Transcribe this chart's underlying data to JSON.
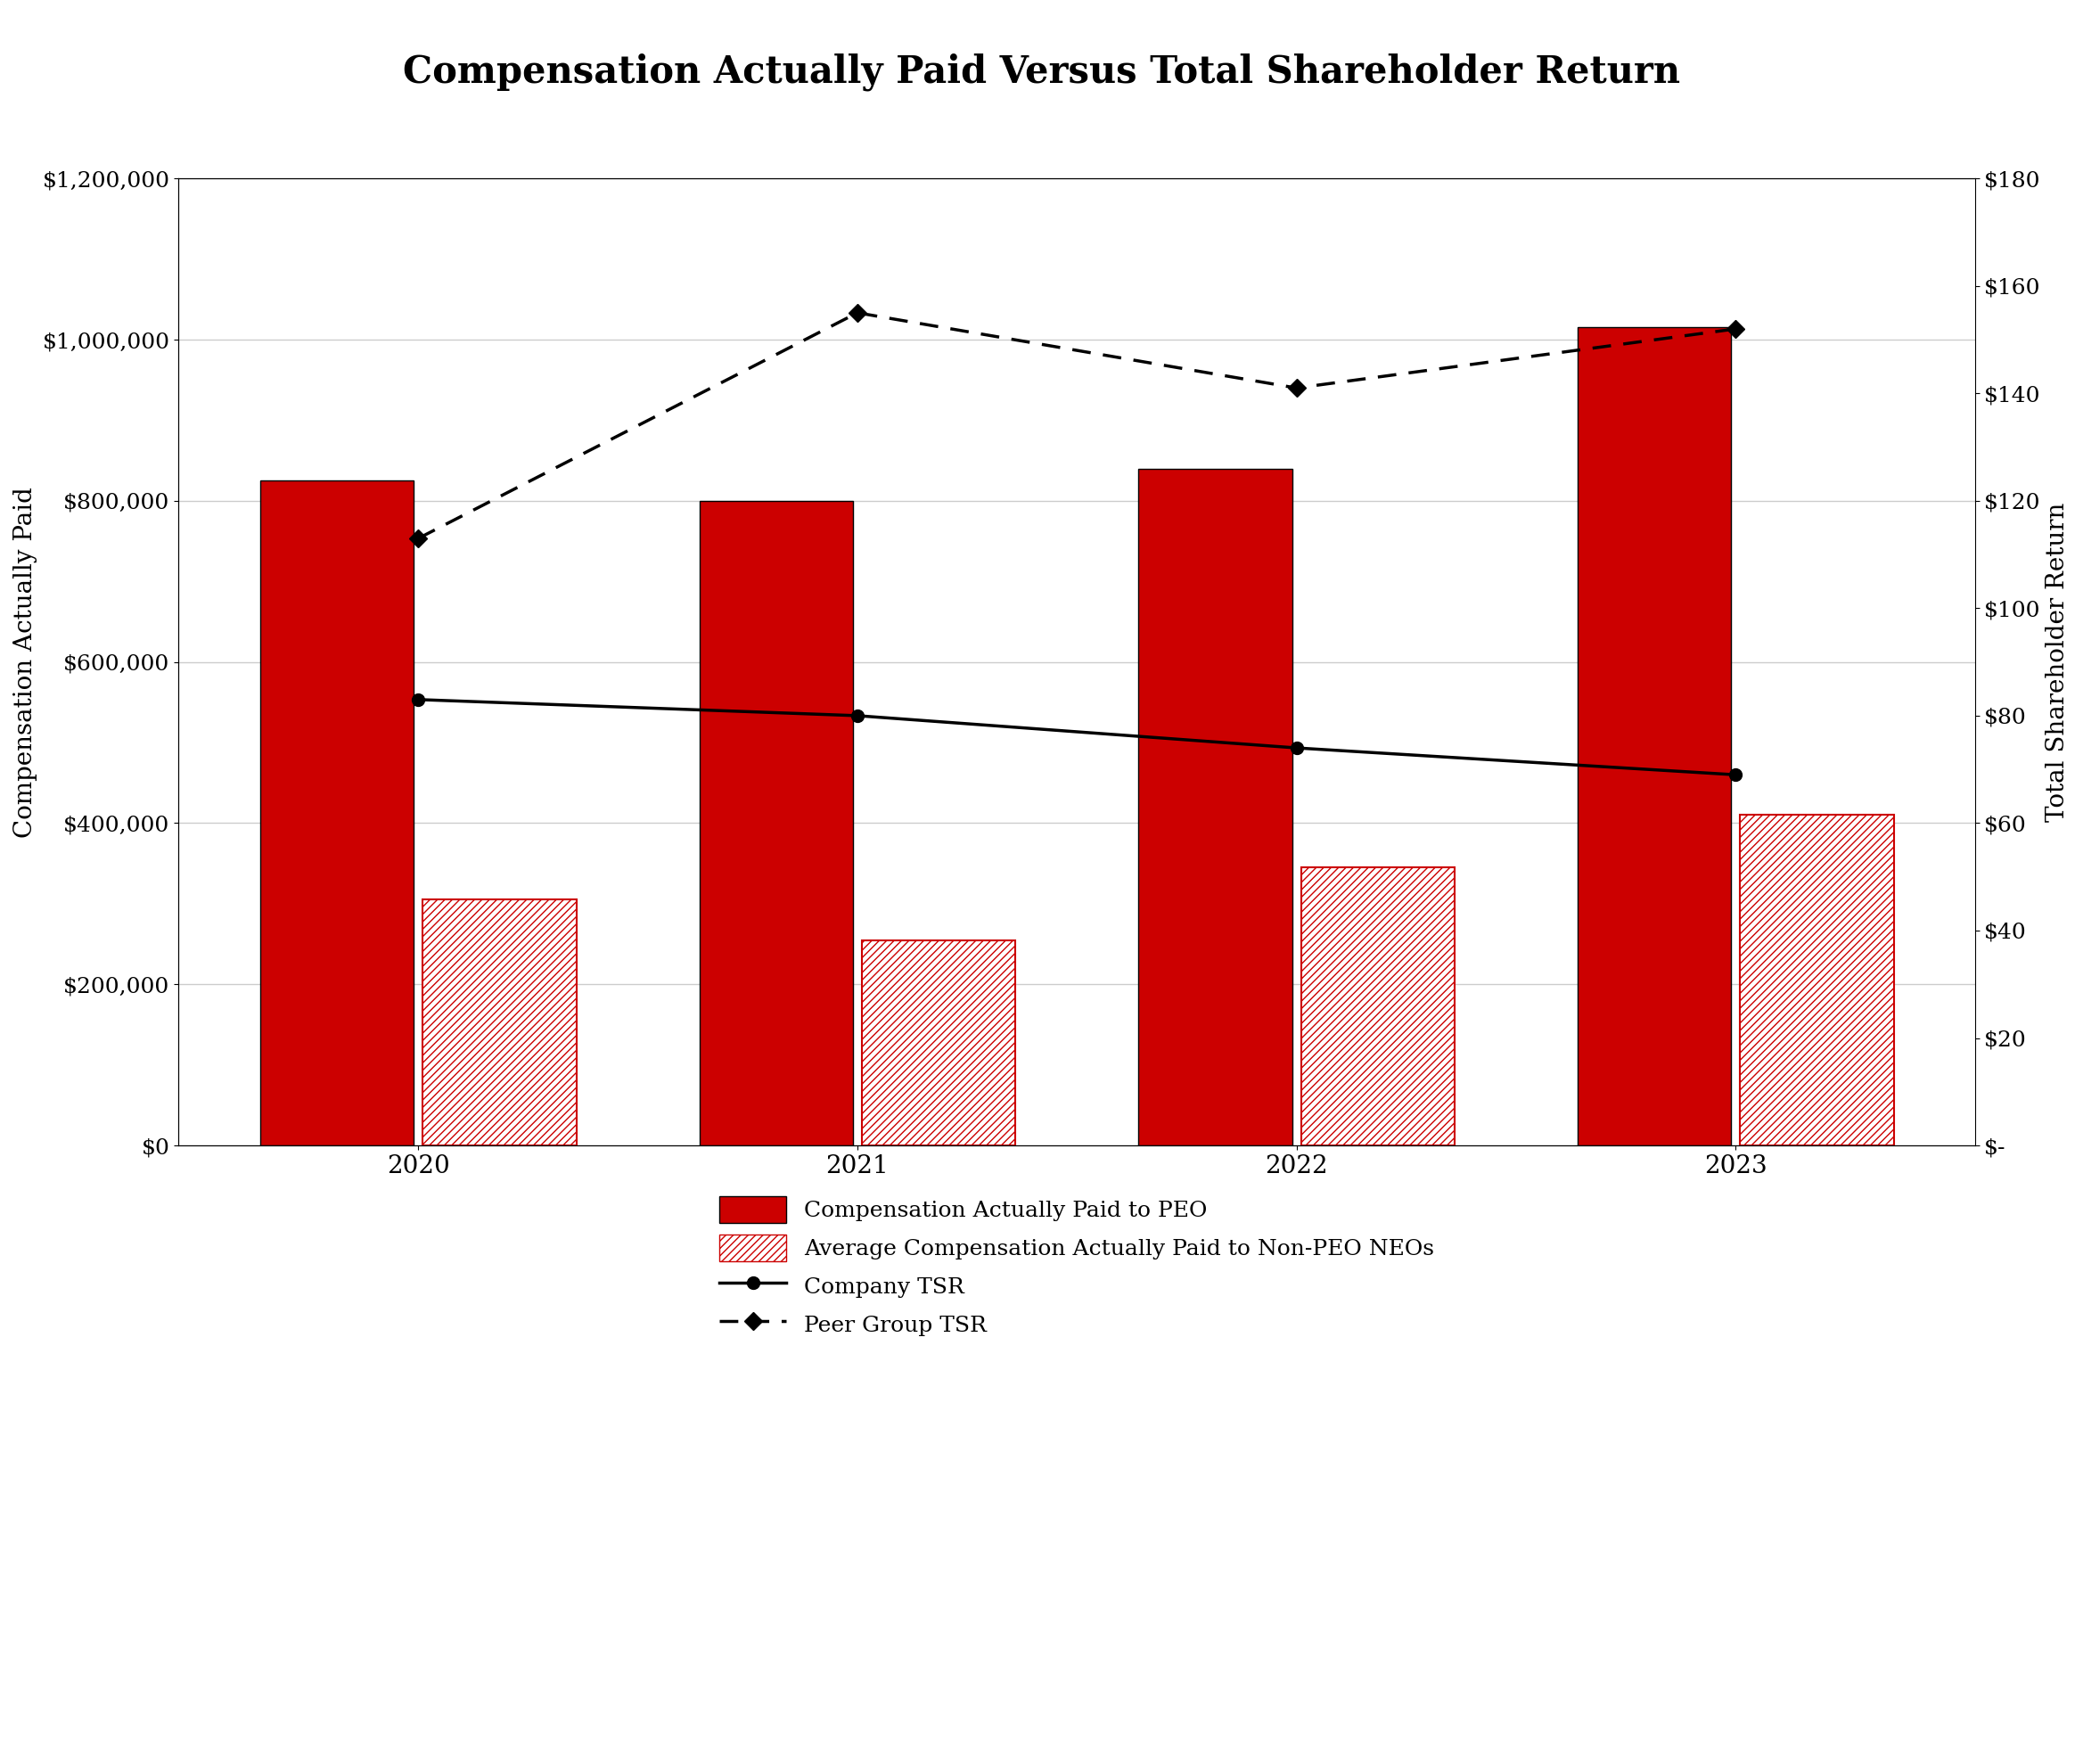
{
  "title": "Compensation Actually Paid Versus Total Shareholder Return",
  "years": [
    2020,
    2021,
    2022,
    2023
  ],
  "peo_values": [
    825000,
    800000,
    840000,
    1015000
  ],
  "neo_values": [
    305000,
    255000,
    345000,
    410000
  ],
  "company_tsr": [
    83,
    80,
    74,
    69
  ],
  "peer_tsr": [
    113,
    155,
    141,
    152
  ],
  "left_ylim": [
    0,
    1200000
  ],
  "right_ylim": [
    0,
    180
  ],
  "left_yticks": [
    0,
    200000,
    400000,
    600000,
    800000,
    1000000,
    1200000
  ],
  "right_yticks": [
    0,
    20,
    40,
    60,
    80,
    100,
    120,
    140,
    160,
    180
  ],
  "left_yticklabels": [
    "$0",
    "$200,000",
    "$400,000",
    "$600,000",
    "$800,000",
    "$1,000,000",
    "$1,200,000"
  ],
  "right_yticklabels": [
    "$-",
    "$20",
    "$40",
    "$60",
    "$80",
    "$100",
    "$120",
    "$140",
    "$160",
    "$180"
  ],
  "ylabel_left": "Compensation Actually Paid",
  "ylabel_right": "Total Shareholder Return",
  "bar_color_solid": "#CC0000",
  "bar_color_hatch": "#CC0000",
  "hatch_pattern": "////",
  "bar_width": 0.35,
  "bar_gap": 0.02,
  "legend_labels": [
    "Compensation Actually Paid to PEO",
    "Average Compensation Actually Paid to Non-PEO NEOs",
    "Company TSR",
    "Peer Group TSR"
  ],
  "background_color": "#ffffff",
  "grid_color": "#cccccc",
  "title_fontsize": 30,
  "axis_label_fontsize": 20,
  "tick_fontsize": 18,
  "legend_fontsize": 18
}
